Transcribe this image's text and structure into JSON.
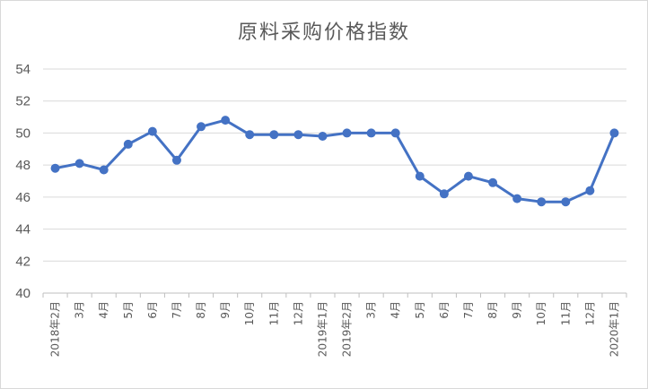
{
  "chart_data": {
    "type": "line",
    "title": "原料采购价格指数",
    "categories": [
      "2018年2月",
      "3月",
      "4月",
      "5月",
      "6月",
      "7月",
      "8月",
      "9月",
      "10月",
      "11月",
      "12月",
      "2019年1月",
      "2019年2月",
      "3月",
      "4月",
      "5月",
      "6月",
      "7月",
      "8月",
      "9月",
      "10月",
      "11月",
      "12月",
      "2020年1月"
    ],
    "series": [
      {
        "values": [
          47.8,
          48.1,
          47.7,
          49.3,
          50.1,
          48.3,
          50.4,
          50.8,
          49.9,
          49.9,
          49.9,
          49.8,
          50.0,
          50.0,
          50.0,
          47.3,
          46.2,
          47.3,
          46.9,
          45.9,
          45.7,
          45.7,
          46.4,
          50.0
        ]
      }
    ],
    "ylim": [
      40,
      54
    ],
    "yticks": [
      40,
      42,
      44,
      46,
      48,
      50,
      52,
      54
    ],
    "grid": true,
    "color": "#4472c4"
  }
}
